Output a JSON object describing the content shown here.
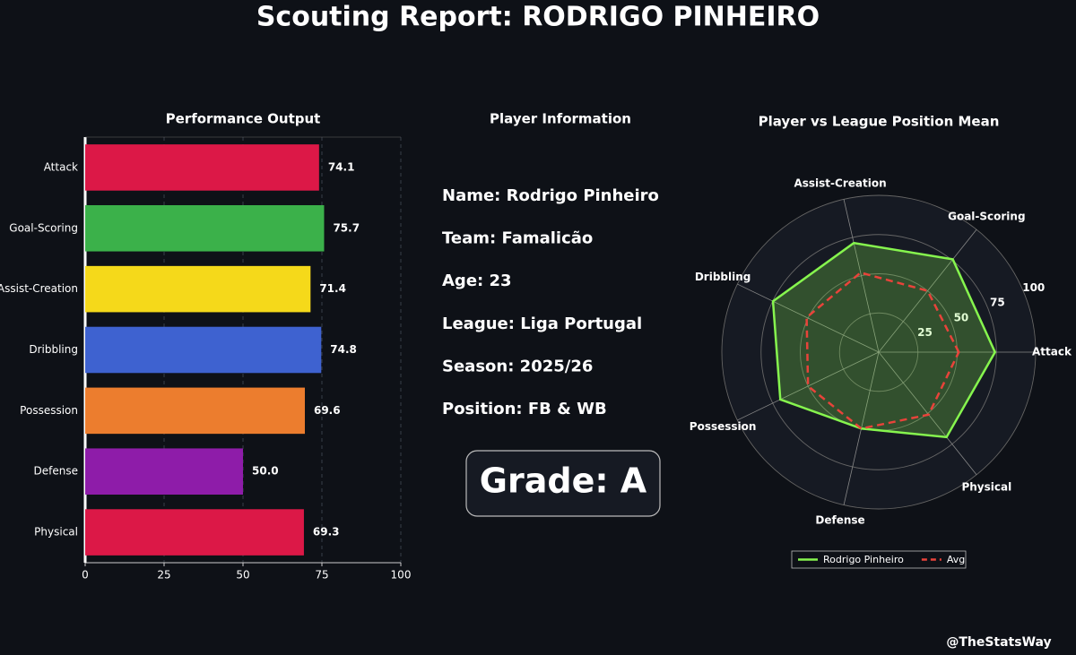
{
  "title": "Scouting Report: RODRIGO PINHEIRO",
  "chart_data": [
    {
      "type": "hbar",
      "title": "Performance Output",
      "categories": [
        "Attack",
        "Goal-Scoring",
        "Assist-Creation",
        "Dribbling",
        "Possession",
        "Defense",
        "Physical"
      ],
      "values": [
        74.1,
        75.7,
        71.4,
        74.8,
        69.6,
        50.0,
        69.3
      ],
      "value_labels": [
        "74.1",
        "75.7",
        "71.4",
        "74.8",
        "69.6",
        "50.0",
        "69.3"
      ],
      "colors": [
        "#dc1847",
        "#3bb14a",
        "#f5d91a",
        "#3e62d0",
        "#ec7d2e",
        "#8e1ca9",
        "#dc1847"
      ],
      "xlim": [
        0,
        100
      ],
      "xticks": [
        0,
        25,
        50,
        75,
        100
      ],
      "grid": true
    },
    {
      "type": "radar",
      "title": "Player vs League Position Mean",
      "categories": [
        "Attack",
        "Goal-Scoring",
        "Assist-Creation",
        "Dribbling",
        "Possession",
        "Defense",
        "Physical"
      ],
      "series": [
        {
          "name": "Rodrigo Pinheiro",
          "color": "#86f54e",
          "values": [
            74.1,
            75.7,
            71.4,
            74.8,
            69.6,
            50.0,
            69.3
          ]
        },
        {
          "name": "Avg",
          "color": "#e8433a",
          "dashed": true,
          "values": [
            51,
            50,
            52,
            51,
            50,
            50,
            51
          ]
        }
      ],
      "rlim": [
        0,
        100
      ],
      "rticks": [
        25,
        50,
        75,
        100
      ]
    }
  ],
  "info_title": "Player Information",
  "info": [
    "Name: Rodrigo Pinheiro",
    "Team: Famalicão",
    "Age: 23",
    "League: Liga Portugal",
    "Season: 2025/26",
    "Position: FB & WB"
  ],
  "grade": "Grade: A",
  "watermark": "@TheStatsWay"
}
